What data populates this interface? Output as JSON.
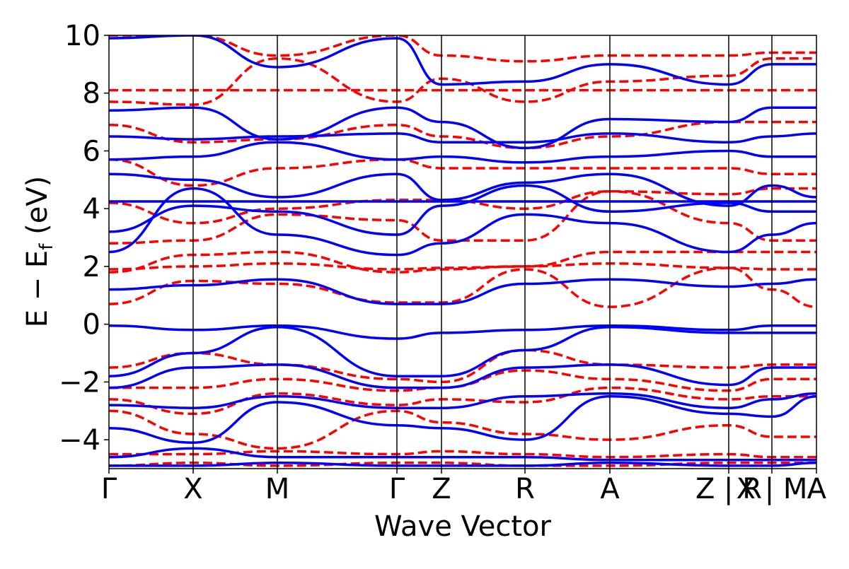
{
  "chart_data": {
    "type": "line",
    "xlabel": "Wave Vector",
    "ylabel": "E − E",
    "ylabel_sub": "f",
    "ylabel_unit": " (eV)",
    "ylim": [
      -5,
      10
    ],
    "xlim": [
      0,
      100
    ],
    "grid": false,
    "y_ticks": [
      {
        "value": -4,
        "label": "−4"
      },
      {
        "value": -2,
        "label": "−2"
      },
      {
        "value": 0,
        "label": "0"
      },
      {
        "value": 2,
        "label": "2"
      },
      {
        "value": 4,
        "label": "4"
      },
      {
        "value": 6,
        "label": "6"
      },
      {
        "value": 8,
        "label": "8"
      },
      {
        "value": 10,
        "label": "10"
      }
    ],
    "k_points": [
      {
        "label": "Γ",
        "x": 0
      },
      {
        "label": "X",
        "x": 11.9
      },
      {
        "label": "M",
        "x": 23.8
      },
      {
        "label": "Γ",
        "x": 40.7
      },
      {
        "label": "Z",
        "x": 47.0
      },
      {
        "label": "R",
        "x": 58.8
      },
      {
        "label": "A",
        "x": 70.8
      },
      {
        "label": "Z | R",
        "x": 87.6
      },
      {
        "label": "X | M",
        "x": 93.7
      },
      {
        "label": "A",
        "x": 100
      }
    ],
    "series": [
      {
        "style": "dashed",
        "color": "#ff0000",
        "bands": [
          {
            "x": [
              0,
              100
            ],
            "y": [
              8.1,
              8.1
            ]
          },
          {
            "x": [
              0,
              11.9,
              23.8,
              40.7,
              47.0,
              58.8,
              70.8,
              87.6,
              93.7,
              100
            ],
            "y": [
              1.9,
              2.0,
              2.1,
              1.9,
              1.95,
              2.0,
              2.1,
              1.95,
              1.9,
              1.9
            ]
          },
          {
            "x": [
              0,
              11.9,
              23.8,
              40.7,
              47.0,
              58.8,
              70.8,
              87.6,
              93.7,
              100
            ],
            "y": [
              1.8,
              2.4,
              2.5,
              1.8,
              1.9,
              2.0,
              2.5,
              2.5,
              2.5,
              2.5
            ]
          },
          {
            "x": [
              0,
              11.9,
              23.8,
              40.7,
              47.0,
              58.8,
              70.8,
              87.6,
              93.7,
              100
            ],
            "y": [
              0.7,
              1.5,
              1.4,
              0.75,
              0.75,
              1.9,
              0.6,
              1.95,
              1.2,
              0.6
            ]
          },
          {
            "x": [
              0,
              11.9,
              23.8,
              40.7,
              47.0,
              58.8,
              70.8,
              87.6,
              93.7,
              100
            ],
            "y": [
              2.8,
              2.9,
              3.8,
              3.6,
              2.9,
              2.9,
              4.6,
              3.5,
              2.9,
              2.9
            ]
          },
          {
            "x": [
              0,
              11.9,
              23.8,
              40.7,
              47.0,
              58.8,
              70.8,
              87.6,
              93.7,
              100
            ],
            "y": [
              4.2,
              3.5,
              4.0,
              4.3,
              4.3,
              4.0,
              4.6,
              4.5,
              4.7,
              4.7
            ]
          },
          {
            "x": [
              0,
              11.9,
              23.8,
              40.7,
              47.0,
              58.8,
              70.8,
              87.6,
              93.7,
              100
            ],
            "y": [
              5.7,
              4.8,
              5.4,
              5.7,
              5.4,
              5.4,
              5.4,
              5.4,
              5.2,
              5.2
            ]
          },
          {
            "x": [
              0,
              11.9,
              23.8,
              40.7,
              47.0,
              58.8,
              70.8,
              87.6,
              93.7,
              100
            ],
            "y": [
              6.9,
              6.3,
              6.4,
              6.9,
              6.5,
              6.1,
              6.5,
              7.0,
              7.0,
              7.0
            ]
          },
          {
            "x": [
              0,
              11.9,
              23.8,
              40.7,
              47.0,
              58.8,
              70.8,
              87.6,
              93.7,
              100
            ],
            "y": [
              7.7,
              7.6,
              9.2,
              7.7,
              8.5,
              7.7,
              8.4,
              8.6,
              9.2,
              9.2
            ]
          },
          {
            "x": [
              0,
              11.9,
              23.8,
              40.7,
              47.0,
              58.8,
              70.8,
              87.6,
              93.7,
              100
            ],
            "y": [
              10.0,
              10.0,
              9.3,
              10.0,
              9.3,
              9.1,
              9.3,
              9.3,
              9.4,
              9.4
            ]
          },
          {
            "x": [
              0,
              11.9,
              23.8,
              40.7,
              47.0,
              58.8,
              70.8,
              87.6,
              93.7,
              100
            ],
            "y": [
              -1.5,
              -1.0,
              -1.4,
              -1.9,
              -2.0,
              -0.9,
              -1.4,
              -1.5,
              -1.4,
              -1.4
            ]
          },
          {
            "x": [
              0,
              11.9,
              23.8,
              40.7,
              47.0,
              58.8,
              70.8,
              87.6,
              93.7,
              100
            ],
            "y": [
              -2.2,
              -2.2,
              -1.9,
              -2.3,
              -2.2,
              -1.6,
              -1.9,
              -2.3,
              -1.9,
              -1.9
            ]
          },
          {
            "x": [
              0,
              11.9,
              23.8,
              40.7,
              47.0,
              58.8,
              70.8,
              87.6,
              93.7,
              100
            ],
            "y": [
              -2.6,
              -3.1,
              -2.4,
              -2.8,
              -2.6,
              -2.7,
              -2.2,
              -2.6,
              -2.5,
              -2.5
            ]
          },
          {
            "x": [
              0,
              11.9,
              23.8,
              40.7,
              47.0,
              58.8,
              70.8,
              87.6,
              93.7,
              100
            ],
            "y": [
              -3.0,
              -3.8,
              -4.3,
              -3.0,
              -3.4,
              -3.8,
              -4.0,
              -3.5,
              -3.9,
              -3.9
            ]
          },
          {
            "x": [
              0,
              11.9,
              23.8,
              40.7,
              47.0,
              58.8,
              70.8,
              87.6,
              93.7,
              100
            ],
            "y": [
              -4.5,
              -4.5,
              -4.4,
              -4.5,
              -4.4,
              -4.5,
              -4.6,
              -4.5,
              -4.6,
              -4.6
            ]
          },
          {
            "x": [
              0,
              11.9,
              23.8,
              40.7,
              47.0,
              58.8,
              70.8,
              87.6,
              93.7,
              100
            ],
            "y": [
              -4.9,
              -4.8,
              -4.9,
              -4.8,
              -4.8,
              -4.9,
              -4.9,
              -4.8,
              -4.8,
              -4.8
            ]
          }
        ]
      },
      {
        "style": "solid",
        "color": "#0000ff",
        "bands": [
          {
            "x": [
              0,
              100
            ],
            "y": [
              4.25,
              4.25
            ]
          },
          {
            "x": [
              0,
              11.9,
              23.8,
              40.7,
              47.0,
              58.8,
              70.8,
              87.6,
              93.7,
              100
            ],
            "y": [
              -0.05,
              -0.2,
              -0.05,
              -0.5,
              -0.3,
              -0.2,
              -0.05,
              -0.2,
              -0.05,
              -0.05
            ]
          },
          {
            "x": [
              0,
              11.9,
              23.8,
              40.7,
              47.0,
              58.8,
              70.8,
              87.6,
              93.7,
              100
            ],
            "y": [
              -1.8,
              -1.0,
              -0.1,
              -1.8,
              -1.8,
              -0.9,
              -0.1,
              -0.3,
              -0.3,
              -0.3
            ]
          },
          {
            "x": [
              0,
              11.9,
              23.8,
              40.7,
              47.0,
              58.8,
              70.8,
              87.6,
              93.7,
              100
            ],
            "y": [
              1.2,
              1.35,
              1.55,
              0.7,
              0.7,
              1.4,
              1.55,
              1.3,
              1.4,
              1.55
            ]
          },
          {
            "x": [
              0,
              11.9,
              23.8,
              40.7,
              47.0,
              58.8,
              70.8,
              87.6,
              93.7,
              100
            ],
            "y": [
              2.5,
              4.7,
              3.1,
              2.4,
              2.8,
              3.8,
              3.5,
              2.5,
              3.1,
              3.5
            ]
          },
          {
            "x": [
              0,
              11.9,
              23.8,
              40.7,
              47.0,
              58.8,
              70.8,
              87.6,
              93.7,
              100
            ],
            "y": [
              3.2,
              4.1,
              3.9,
              3.1,
              4.1,
              4.8,
              3.9,
              4.2,
              3.9,
              3.9
            ]
          },
          {
            "x": [
              0,
              11.9,
              23.8,
              40.7,
              47.0,
              58.8,
              70.8,
              87.6,
              93.7,
              100
            ],
            "y": [
              5.2,
              5.0,
              4.4,
              5.2,
              4.3,
              4.9,
              5.2,
              4.1,
              4.8,
              4.4
            ]
          },
          {
            "x": [
              0,
              11.9,
              23.8,
              40.7,
              47.0,
              58.8,
              70.8,
              87.6,
              93.7,
              100
            ],
            "y": [
              5.7,
              5.8,
              6.3,
              5.7,
              5.8,
              5.6,
              5.8,
              6.0,
              5.8,
              5.8
            ]
          },
          {
            "x": [
              0,
              11.9,
              23.8,
              40.7,
              47.0,
              58.8,
              70.8,
              87.6,
              93.7,
              100
            ],
            "y": [
              6.5,
              6.4,
              6.5,
              6.6,
              6.3,
              6.3,
              6.6,
              6.3,
              6.5,
              6.6
            ]
          },
          {
            "x": [
              0,
              11.9,
              23.8,
              40.7,
              47.0,
              58.8,
              70.8,
              87.6,
              93.7,
              100
            ],
            "y": [
              7.4,
              7.5,
              6.4,
              7.5,
              7.0,
              6.1,
              7.1,
              7.0,
              7.5,
              7.5
            ]
          },
          {
            "x": [
              0,
              11.9,
              23.8,
              40.7,
              47.0,
              58.8,
              70.8,
              87.6,
              93.7,
              100
            ],
            "y": [
              9.9,
              10.0,
              8.9,
              9.9,
              8.3,
              8.4,
              9.0,
              8.3,
              9.0,
              9.0
            ]
          },
          {
            "x": [
              0,
              11.9,
              23.8,
              40.7,
              47.0,
              58.8,
              70.8,
              87.6,
              93.7,
              100
            ],
            "y": [
              -2.2,
              -1.5,
              -1.4,
              -2.2,
              -2.2,
              -1.5,
              -1.4,
              -2.1,
              -1.5,
              -1.5
            ]
          },
          {
            "x": [
              0,
              11.9,
              23.8,
              40.7,
              47.0,
              58.8,
              70.8,
              87.6,
              93.7,
              100
            ],
            "y": [
              -2.8,
              -2.9,
              -2.5,
              -2.9,
              -2.9,
              -2.5,
              -2.4,
              -2.9,
              -2.6,
              -2.4
            ]
          },
          {
            "x": [
              0,
              11.9,
              23.8,
              40.7,
              47.0,
              58.8,
              70.8,
              87.6,
              93.7,
              100
            ],
            "y": [
              -3.6,
              -4.1,
              -2.7,
              -3.5,
              -3.6,
              -4.0,
              -2.5,
              -3.1,
              -3.2,
              -2.5
            ]
          },
          {
            "x": [
              0,
              11.9,
              23.8,
              40.7,
              47.0,
              58.8,
              70.8,
              87.6,
              93.7,
              100
            ],
            "y": [
              -4.6,
              -4.3,
              -4.6,
              -4.6,
              -4.6,
              -4.6,
              -4.7,
              -4.7,
              -4.7,
              -4.7
            ]
          },
          {
            "x": [
              0,
              11.9,
              23.8,
              40.7,
              47.0,
              58.8,
              70.8,
              87.6,
              93.7,
              100
            ],
            "y": [
              -4.9,
              -4.9,
              -4.8,
              -4.9,
              -4.9,
              -4.9,
              -4.8,
              -4.9,
              -4.9,
              -4.8
            ]
          }
        ]
      }
    ]
  }
}
